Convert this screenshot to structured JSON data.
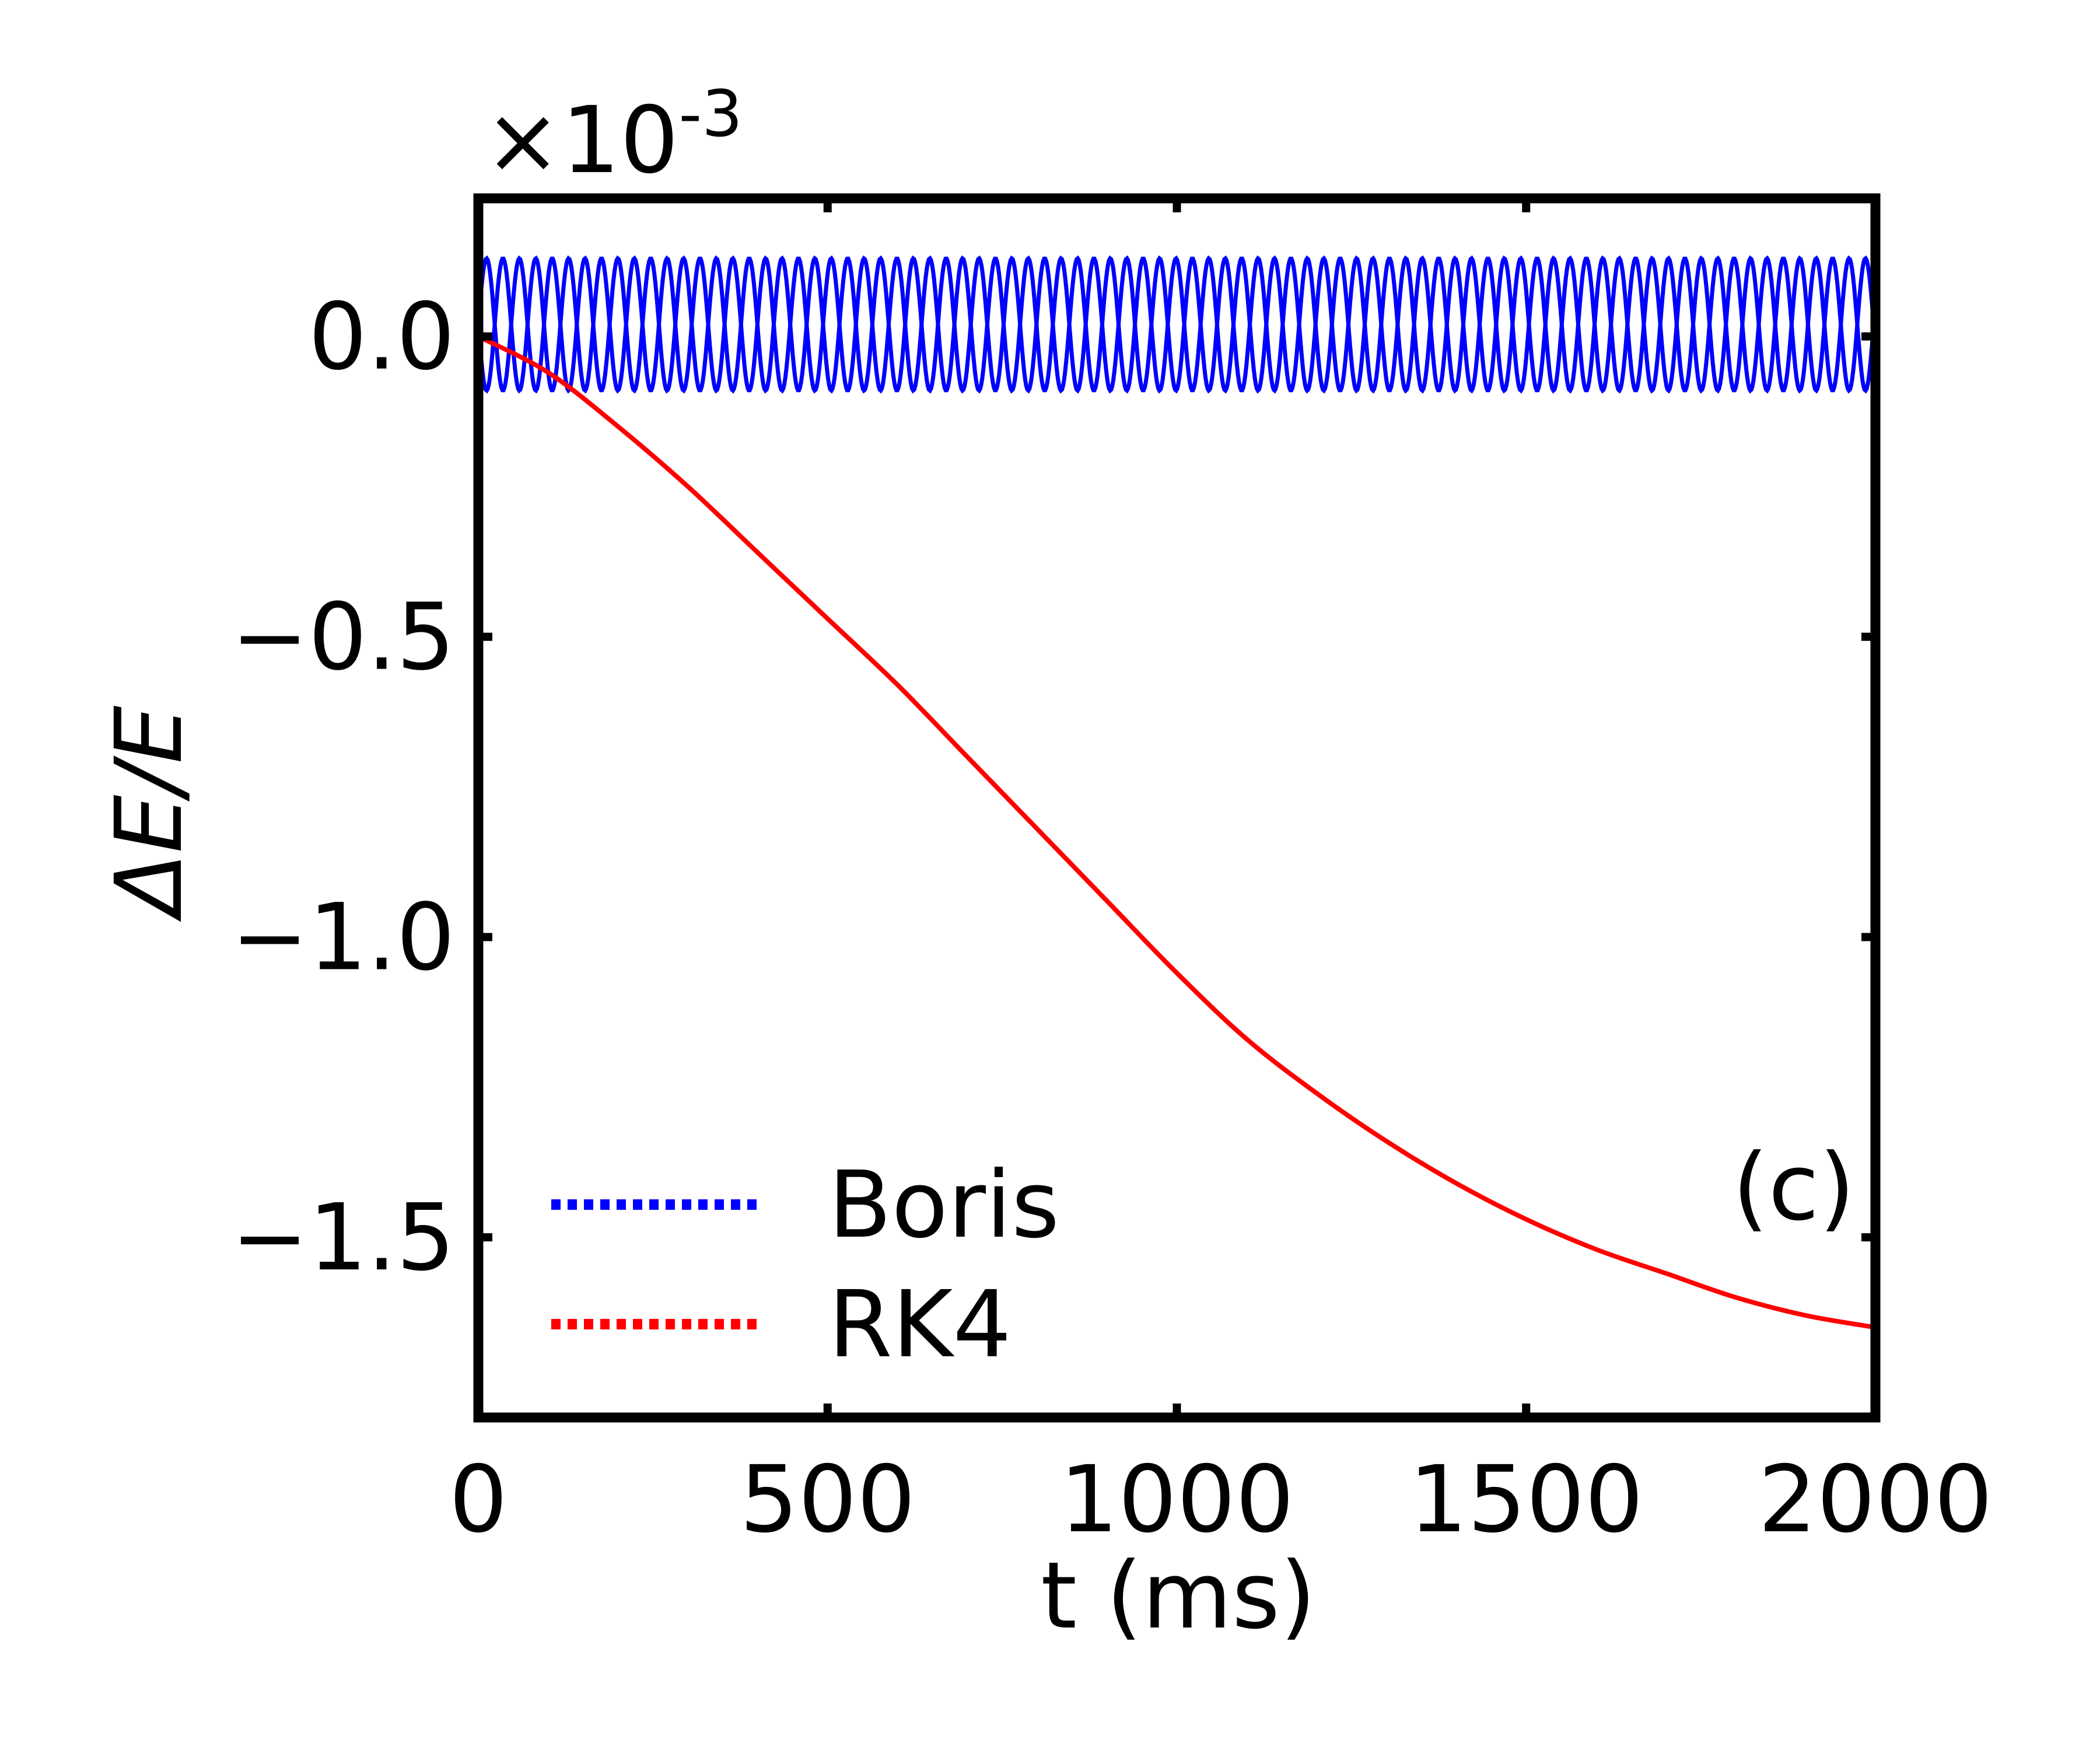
{
  "chart_data": {
    "type": "line",
    "xlabel": "t (ms)",
    "ylabel": "ΔE/E",
    "y_multiplier": {
      "base": "×10",
      "exponent": "-3"
    },
    "panel_label": "(c)",
    "xlim": [
      0,
      2000
    ],
    "ylim": [
      -1.8,
      0.23
    ],
    "x_ticks": [
      0,
      500,
      1000,
      1500,
      2000
    ],
    "x_tick_labels": [
      "0",
      "500",
      "1000",
      "1500",
      "2000"
    ],
    "y_ticks": [
      0.0,
      -0.5,
      -1.0,
      -1.5
    ],
    "y_tick_labels": [
      "0.0",
      "−0.5",
      "−1.0",
      "−1.5"
    ],
    "grid": false,
    "legend_position": "lower-left",
    "series": [
      {
        "name": "Boris",
        "color": "#0000ff",
        "legend_style": "dotted",
        "x": [
          0,
          5,
          10,
          15,
          20,
          25,
          30,
          35,
          40,
          45,
          50,
          60,
          80,
          100,
          150,
          200,
          250,
          300,
          400,
          500,
          600,
          700,
          800,
          900,
          1000,
          1100,
          1200,
          1300,
          1400,
          1500,
          1600,
          1700,
          1800,
          1900,
          2000
        ],
        "values": [
          0.0,
          0.13,
          -0.09,
          0.13,
          -0.09,
          0.13,
          -0.09,
          0.13,
          -0.09,
          0.13,
          -0.09,
          0.13,
          -0.09,
          0.13,
          -0.09,
          0.13,
          -0.09,
          0.13,
          -0.09,
          0.13,
          -0.09,
          0.13,
          -0.09,
          0.13,
          -0.09,
          0.13,
          -0.09,
          0.13,
          -0.09,
          0.13,
          -0.09,
          0.13,
          -0.09,
          0.13,
          -0.09
        ],
        "envelope": {
          "min": -0.09,
          "max": 0.13
        }
      },
      {
        "name": "RK4",
        "color": "#ff0000",
        "legend_style": "dotted",
        "x": [
          0,
          100,
          200,
          300,
          400,
          500,
          600,
          700,
          800,
          900,
          1000,
          1100,
          1200,
          1300,
          1400,
          1500,
          1600,
          1700,
          1800,
          1900,
          2000
        ],
        "values": [
          0.0,
          -0.06,
          -0.15,
          -0.25,
          -0.36,
          -0.47,
          -0.58,
          -0.7,
          -0.82,
          -0.94,
          -1.06,
          -1.17,
          -1.26,
          -1.34,
          -1.41,
          -1.47,
          -1.52,
          -1.56,
          -1.6,
          -1.63,
          -1.65
        ]
      }
    ]
  }
}
